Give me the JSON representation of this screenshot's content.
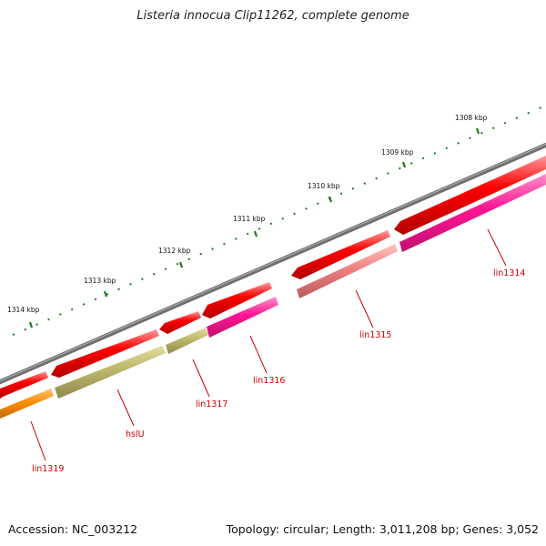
{
  "title": "Listeria innocua Clip11262, complete genome",
  "footer": {
    "accession": "Accession: NC_003212",
    "summary": "Topology: circular; Length: 3,011,208 bp; Genes: 3,052"
  },
  "colors": {
    "backbone": "#7a7a7a",
    "ticks": "#1e7a1e",
    "forward": "#ff0000",
    "reverse_magenta": "#ff1493",
    "reverse_olive": "#bdb76b",
    "reverse_salmon": "#f08080",
    "reverse_orange": "#ff8c00",
    "label": "#cc0000"
  },
  "kbp_labels": [
    "1314 kbp",
    "1313 kbp",
    "1312 kbp",
    "1311 kbp",
    "1310 kbp",
    "1309 kbp",
    "1308 kbp"
  ],
  "genes": [
    {
      "id": "lin1314",
      "label": "lin1314"
    },
    {
      "id": "lin1315",
      "label": "lin1315"
    },
    {
      "id": "lin1316",
      "label": "lin1316"
    },
    {
      "id": "lin1317",
      "label": "lin1317"
    },
    {
      "id": "hslU",
      "label": "hslU"
    },
    {
      "id": "lin1319",
      "label": "lin1319"
    }
  ]
}
